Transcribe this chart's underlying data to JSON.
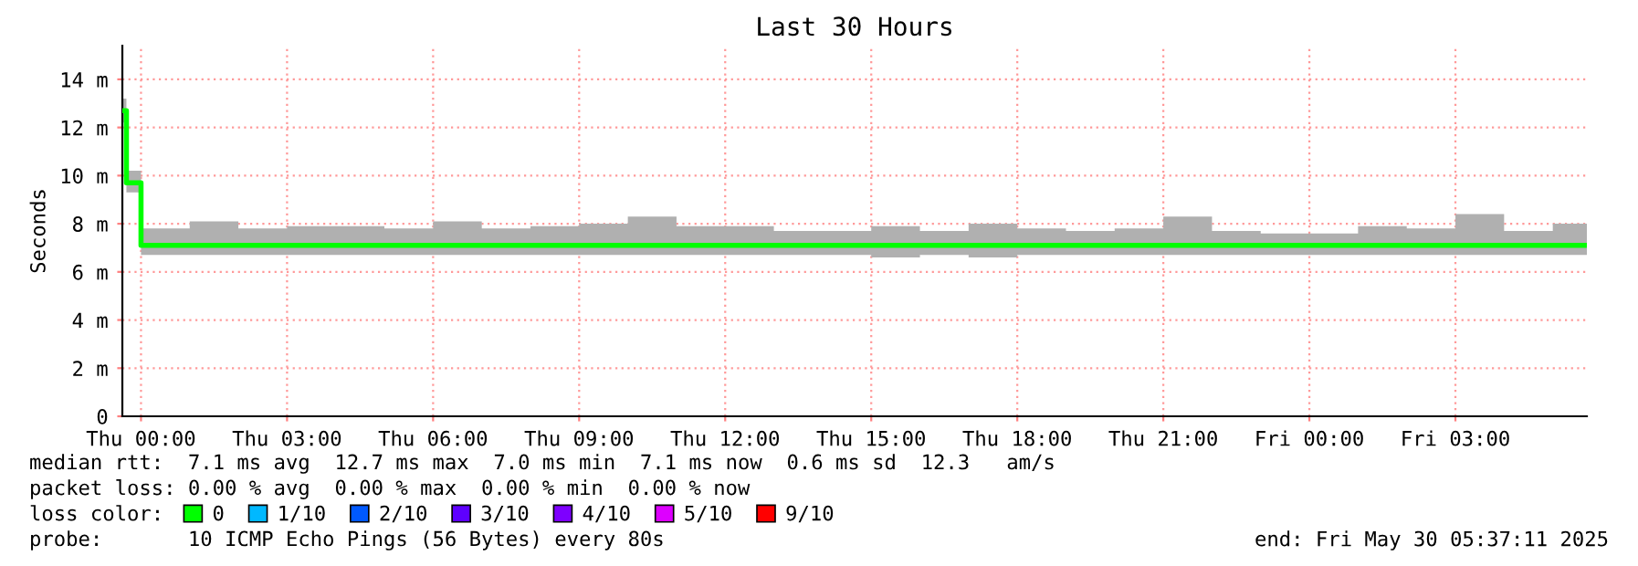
{
  "chart_data": {
    "type": "step",
    "title": "Last 30 Hours",
    "ylabel": "Seconds",
    "xlim": [
      "2025-05-28T23:37",
      "2025-05-30T05:42"
    ],
    "ylim": [
      0,
      15.4
    ],
    "xticks": [
      {
        "value": "2025-05-29T00:00",
        "label": "Thu 00:00"
      },
      {
        "value": "2025-05-29T03:00",
        "label": "Thu 03:00"
      },
      {
        "value": "2025-05-29T06:00",
        "label": "Thu 06:00"
      },
      {
        "value": "2025-05-29T09:00",
        "label": "Thu 09:00"
      },
      {
        "value": "2025-05-29T12:00",
        "label": "Thu 12:00"
      },
      {
        "value": "2025-05-29T15:00",
        "label": "Thu 15:00"
      },
      {
        "value": "2025-05-29T18:00",
        "label": "Thu 18:00"
      },
      {
        "value": "2025-05-29T21:00",
        "label": "Thu 21:00"
      },
      {
        "value": "2025-05-30T00:00",
        "label": "Fri 00:00"
      },
      {
        "value": "2025-05-30T03:00",
        "label": "Fri 03:00"
      }
    ],
    "yticks": [
      0,
      {
        "value": 2,
        "label": "2 m"
      },
      {
        "value": 4,
        "label": "4 m"
      },
      {
        "value": 6,
        "label": "6 m"
      },
      {
        "value": 8,
        "label": "8 m"
      },
      {
        "value": 10,
        "label": "10 m"
      },
      {
        "value": 12,
        "label": "12 m"
      },
      {
        "value": 14,
        "label": "14 m"
      }
    ],
    "grid": true,
    "legend": "bottom",
    "legend_title": "loss color:",
    "series": [
      {
        "name": "0",
        "color": "#00ff00",
        "x": [
          "2025-05-28T23:37",
          "2025-05-28T23:42",
          "2025-05-29T00:00",
          "2025-05-29T01:00",
          "2025-05-29T02:00",
          "2025-05-29T03:00",
          "2025-05-29T04:00",
          "2025-05-29T05:00",
          "2025-05-29T06:00",
          "2025-05-29T07:00",
          "2025-05-29T08:00",
          "2025-05-29T09:00",
          "2025-05-29T10:00",
          "2025-05-29T11:00",
          "2025-05-29T12:00",
          "2025-05-29T13:00",
          "2025-05-29T14:00",
          "2025-05-29T15:00",
          "2025-05-29T16:00",
          "2025-05-29T17:00",
          "2025-05-29T18:00",
          "2025-05-29T19:00",
          "2025-05-29T20:00",
          "2025-05-29T21:00",
          "2025-05-29T22:00",
          "2025-05-29T23:00",
          "2025-05-30T00:00",
          "2025-05-30T01:00",
          "2025-05-30T02:00",
          "2025-05-30T03:00",
          "2025-05-30T04:00",
          "2025-05-30T05:00",
          "2025-05-30T05:42"
        ],
        "values": [
          12.7,
          9.7,
          7.1,
          7.1,
          7.1,
          7.1,
          7.1,
          7.1,
          7.1,
          7.1,
          7.1,
          7.1,
          7.1,
          7.1,
          7.1,
          7.1,
          7.1,
          7.1,
          7.1,
          7.1,
          7.1,
          7.1,
          7.1,
          7.1,
          7.1,
          7.1,
          7.1,
          7.1,
          7.1,
          7.1,
          7.1,
          7.1,
          7.1
        ],
        "lower": [
          12.2,
          9.3,
          6.7,
          6.7,
          6.7,
          6.7,
          6.7,
          6.7,
          6.7,
          6.7,
          6.7,
          6.7,
          6.7,
          6.7,
          6.7,
          6.7,
          6.7,
          6.6,
          6.7,
          6.6,
          6.7,
          6.7,
          6.7,
          6.7,
          6.7,
          6.7,
          6.7,
          6.7,
          6.7,
          6.7,
          6.7,
          6.7,
          6.7
        ],
        "upper": [
          13.2,
          10.2,
          7.8,
          8.1,
          7.8,
          7.9,
          7.9,
          7.8,
          8.1,
          7.8,
          7.9,
          8.0,
          8.3,
          7.9,
          7.9,
          7.7,
          7.7,
          7.9,
          7.7,
          8.0,
          7.8,
          7.7,
          7.8,
          8.3,
          7.7,
          7.6,
          7.6,
          7.9,
          7.8,
          8.4,
          7.7,
          8.0,
          8.0
        ]
      },
      {
        "name": "1/10",
        "color": "#00b8ff"
      },
      {
        "name": "2/10",
        "color": "#0059ff"
      },
      {
        "name": "3/10",
        "color": "#5e00ff"
      },
      {
        "name": "4/10",
        "color": "#7e00ff"
      },
      {
        "name": "5/10",
        "color": "#dd00ff"
      },
      {
        "name": "9/10",
        "color": "#ff0000"
      }
    ],
    "annotations": [
      "median rtt:  7.1 ms avg  12.7 ms max  7.0 ms min  7.1 ms now  0.6 ms sd  12.3   am/s",
      "packet loss: 0.00 % avg  0.00 % max  0.00 % min  0.00 % now",
      "probe:       10 ICMP Echo Pings (56 Bytes) every 80s",
      "end: Fri May 30 05:37:11 2025"
    ]
  }
}
